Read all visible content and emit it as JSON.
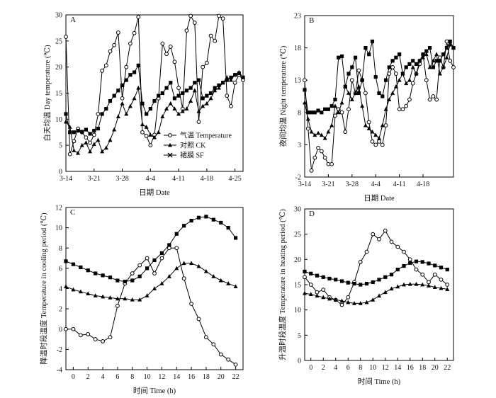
{
  "chart_data": [
    {
      "panel_label": "A",
      "type": "line",
      "x_is_date": true,
      "xlabel": "日期 Date",
      "ylabel": "白天均温 Day temperature (℃)",
      "ylim": [
        0,
        30
      ],
      "yticks": [
        0,
        5,
        10,
        15,
        20,
        25,
        30
      ],
      "xlim": [
        0,
        44
      ],
      "xticks": [
        0,
        7,
        14,
        21,
        28,
        35,
        42
      ],
      "xtick_labels": [
        "3-14",
        "3-21",
        "3-28",
        "4-4",
        "4-11",
        "4-18",
        "4-25"
      ],
      "legend_position": "right-middle",
      "series": [
        {
          "name": "气温 Temperature",
          "marker": "circle-open",
          "x": [
            0,
            1,
            2,
            3,
            4,
            5,
            6,
            7,
            8,
            9,
            10,
            11,
            12,
            13,
            14,
            15,
            16,
            17,
            18,
            19,
            20,
            21,
            22,
            23,
            24,
            25,
            26,
            27,
            28,
            29,
            30,
            31,
            32,
            33,
            34,
            35,
            36,
            37,
            38,
            39,
            40,
            41,
            42,
            43,
            44
          ],
          "y": [
            25.8,
            3.3,
            5.8,
            8.2,
            7.5,
            6.5,
            5.5,
            7,
            11,
            19.3,
            20.3,
            23,
            24.2,
            26.6,
            14,
            20,
            24.5,
            26.5,
            29.6,
            7.5,
            6.8,
            5,
            7,
            14,
            24.5,
            22.5,
            23.9,
            21,
            16,
            12,
            27,
            29.8,
            28.5,
            9.5,
            20,
            20.8,
            26,
            25,
            29.8,
            29.3,
            14.5,
            12.5,
            17,
            18.5,
            17.5
          ]
        },
        {
          "name": "对照 CK",
          "marker": "triangle",
          "x": [
            0,
            1,
            2,
            3,
            4,
            5,
            6,
            7,
            8,
            9,
            10,
            11,
            12,
            13,
            14,
            15,
            16,
            17,
            18,
            19,
            20,
            21,
            22,
            23,
            24,
            25,
            26,
            27,
            28,
            29,
            30,
            31,
            32,
            33,
            34,
            35,
            36,
            37,
            38,
            39,
            40,
            41,
            42,
            43,
            44
          ],
          "y": [
            9.5,
            8.5,
            4,
            3.5,
            5,
            5.5,
            3.8,
            5.2,
            6,
            3.8,
            4.5,
            6,
            8,
            10.5,
            13,
            11,
            12.5,
            14,
            16,
            9,
            8.5,
            7,
            6.5,
            7.5,
            10.5,
            12,
            13,
            12,
            11,
            11.5,
            12,
            13.5,
            15.5,
            11.5,
            12.5,
            13,
            14,
            15.5,
            16,
            17,
            18,
            17.5,
            18.5,
            19,
            18
          ]
        },
        {
          "name": "裙膜 SF",
          "marker": "square",
          "x": [
            0,
            1,
            2,
            3,
            4,
            5,
            6,
            7,
            8,
            9,
            10,
            11,
            12,
            13,
            14,
            15,
            16,
            17,
            18,
            19,
            20,
            21,
            22,
            23,
            24,
            25,
            26,
            27,
            28,
            29,
            30,
            31,
            32,
            33,
            34,
            35,
            36,
            37,
            38,
            39,
            40,
            41,
            42,
            43,
            44
          ],
          "y": [
            11,
            7.5,
            7.5,
            7.8,
            7.6,
            8,
            7.2,
            7.8,
            8.2,
            11,
            12,
            13.5,
            14.5,
            15.5,
            16.5,
            17.5,
            18.5,
            19,
            20.3,
            13,
            11,
            12,
            13.5,
            14.5,
            15,
            16,
            17,
            14,
            14.5,
            15,
            15.5,
            16,
            17,
            17.5,
            14,
            14.5,
            15,
            16,
            16.5,
            17,
            17.5,
            18,
            18.5,
            18.8,
            18
          ]
        }
      ]
    },
    {
      "panel_label": "B",
      "type": "line",
      "x_is_date": true,
      "xlabel": "日期 Date",
      "ylabel": "夜间均温 Night temperature (℃)",
      "ylim": [
        -2,
        23
      ],
      "yticks": [
        -2,
        3,
        8,
        13,
        18,
        23
      ],
      "xlim": [
        0,
        44
      ],
      "xticks": [
        0,
        7,
        14,
        21,
        28,
        35
      ],
      "xtick_labels": [
        "3-14",
        "3-21",
        "3-28",
        "4-4",
        "4-11",
        "4-18"
      ],
      "series": [
        {
          "name": "气温 Temperature",
          "marker": "circle-open",
          "x": [
            0,
            1,
            2,
            3,
            4,
            5,
            6,
            7,
            8,
            9,
            10,
            11,
            12,
            13,
            14,
            15,
            16,
            17,
            18,
            19,
            20,
            21,
            22,
            23,
            24,
            25,
            26,
            27,
            28,
            29,
            30,
            31,
            32,
            33,
            34,
            35,
            36,
            37,
            38,
            39,
            40,
            41,
            42,
            43,
            44
          ],
          "y": [
            13,
            5.5,
            -1,
            1,
            2.5,
            2,
            1,
            0,
            0,
            7.5,
            8.5,
            8,
            5,
            8.5,
            13,
            11,
            14.5,
            13,
            11,
            6.5,
            3.5,
            3,
            3.5,
            3,
            6,
            14,
            15,
            14,
            8.5,
            8.5,
            9,
            10,
            12.5,
            14,
            15.5,
            17,
            13,
            10,
            10.5,
            10,
            16.5,
            15,
            19,
            16,
            15
          ]
        },
        {
          "name": "对照 CK",
          "marker": "triangle",
          "x": [
            0,
            1,
            2,
            3,
            4,
            5,
            6,
            7,
            8,
            9,
            10,
            11,
            12,
            13,
            14,
            15,
            16,
            17,
            18,
            19,
            20,
            21,
            22,
            23,
            24,
            25,
            26,
            27,
            28,
            29,
            30,
            31,
            32,
            33,
            34,
            35,
            36,
            37,
            38,
            39,
            40,
            41,
            42,
            43,
            44
          ],
          "y": [
            9.5,
            7,
            5,
            4.5,
            4.8,
            4.5,
            4,
            5,
            6,
            9,
            8,
            9.5,
            12,
            11,
            10,
            11,
            12,
            9,
            6,
            5.5,
            5,
            4.5,
            4,
            6,
            8.5,
            10,
            11,
            12,
            13,
            14,
            12.5,
            13,
            15,
            14,
            16,
            16.5,
            17,
            15,
            16,
            17,
            14,
            15,
            16.5,
            18.5,
            18
          ]
        },
        {
          "name": "裙膜 SF",
          "marker": "square",
          "x": [
            0,
            1,
            2,
            3,
            4,
            5,
            6,
            7,
            8,
            9,
            10,
            11,
            12,
            13,
            14,
            15,
            16,
            17,
            18,
            19,
            20,
            21,
            22,
            23,
            24,
            25,
            26,
            27,
            28,
            29,
            30,
            31,
            32,
            33,
            34,
            35,
            36,
            37,
            38,
            39,
            40,
            41,
            42,
            43,
            44
          ],
          "y": [
            11.5,
            8,
            8,
            8,
            8.3,
            8,
            8.5,
            8.5,
            9,
            10,
            16.5,
            16.7,
            12,
            14,
            15,
            16.5,
            11,
            13,
            18,
            17,
            19,
            13.5,
            11,
            10.5,
            13,
            15,
            16,
            16.5,
            17,
            14,
            15,
            15.5,
            16,
            15.5,
            16,
            17,
            17.5,
            18,
            15,
            16,
            16,
            17,
            18,
            19,
            18
          ]
        }
      ]
    },
    {
      "panel_label": "C",
      "type": "line",
      "xlabel": "时间 Time (h)",
      "ylabel": "降温时段温度 Temperature in cooling period (℃)",
      "ylim": [
        -4,
        12
      ],
      "yticks": [
        -4,
        -2,
        0,
        2,
        4,
        6,
        8,
        10,
        12
      ],
      "xlim": [
        -1,
        23
      ],
      "xticks": [
        0,
        2,
        4,
        6,
        8,
        10,
        12,
        14,
        16,
        18,
        20,
        22
      ],
      "series": [
        {
          "name": "气温 Temperature",
          "marker": "circle-open",
          "x": [
            -1,
            0,
            1,
            2,
            3,
            4,
            5,
            6,
            7,
            8,
            9,
            10,
            11,
            12,
            13,
            14,
            15,
            16,
            17,
            18,
            19,
            20,
            21,
            22
          ],
          "y": [
            0,
            0,
            -0.6,
            -0.5,
            -1,
            -1.2,
            -0.8,
            2.3,
            4.5,
            5.5,
            6.3,
            7,
            5.5,
            7,
            8,
            8,
            5,
            2.5,
            1,
            -0.8,
            -1.5,
            -2.5,
            -3,
            -3.5
          ]
        },
        {
          "name": "对照 CK",
          "marker": "triangle",
          "x": [
            -1,
            0,
            1,
            2,
            3,
            4,
            5,
            6,
            7,
            8,
            9,
            10,
            11,
            12,
            13,
            14,
            15,
            16,
            17,
            18,
            19,
            20,
            21,
            22
          ],
          "y": [
            4.2,
            3.9,
            3.7,
            3.5,
            3.3,
            3.2,
            3.1,
            3,
            3,
            2.9,
            2.9,
            3.3,
            4,
            4.5,
            5.2,
            6,
            6.5,
            6.5,
            6.2,
            5.7,
            5.2,
            4.8,
            4.5,
            4.2
          ]
        },
        {
          "name": "裙膜 SF",
          "marker": "square",
          "x": [
            -1,
            0,
            1,
            2,
            3,
            4,
            5,
            6,
            7,
            8,
            9,
            10,
            11,
            12,
            13,
            14,
            15,
            16,
            17,
            18,
            19,
            20,
            21,
            22
          ],
          "y": [
            6.7,
            6.4,
            6.1,
            5.8,
            5.5,
            5.3,
            5.1,
            4.8,
            4.7,
            4.8,
            5.2,
            6,
            6.8,
            7.5,
            8.3,
            9.4,
            10.2,
            10.7,
            11,
            11.1,
            10.8,
            10.5,
            10,
            9
          ]
        }
      ]
    },
    {
      "panel_label": "D",
      "type": "line",
      "xlabel": "时间 Time (h)",
      "ylabel": "升温时段温度 Temperature in heating period (℃)",
      "ylim": [
        0,
        30
      ],
      "yticks": [
        0,
        5,
        10,
        15,
        20,
        25,
        30
      ],
      "xlim": [
        -1,
        23
      ],
      "xticks": [
        0,
        2,
        4,
        6,
        8,
        10,
        12,
        14,
        16,
        18,
        20,
        22
      ],
      "series": [
        {
          "name": "气温 Temperature",
          "marker": "circle-open",
          "x": [
            -1,
            0,
            1,
            2,
            3,
            4,
            5,
            6,
            7,
            8,
            9,
            10,
            11,
            12,
            13,
            14,
            15,
            16,
            17,
            18,
            19,
            20,
            21,
            22
          ],
          "y": [
            16.5,
            15,
            13.5,
            14,
            12.5,
            12,
            11,
            12.5,
            15.5,
            19.5,
            21.5,
            25,
            24,
            25.7,
            23.5,
            22.5,
            21.5,
            20,
            18,
            17,
            15.5,
            17,
            16,
            15
          ]
        },
        {
          "name": "对照 CK",
          "marker": "triangle",
          "x": [
            -1,
            0,
            1,
            2,
            3,
            4,
            5,
            6,
            7,
            8,
            9,
            10,
            11,
            12,
            13,
            14,
            15,
            16,
            17,
            18,
            19,
            20,
            21,
            22
          ],
          "y": [
            13.3,
            13.1,
            12.8,
            12.5,
            12.2,
            12,
            11.8,
            11.5,
            11.3,
            11.3,
            11.5,
            12,
            12.8,
            13.5,
            14.2,
            14.6,
            15,
            15.1,
            15.1,
            15,
            14.8,
            14.5,
            14.3,
            14.1
          ]
        },
        {
          "name": "裙膜 SF",
          "marker": "square",
          "x": [
            -1,
            0,
            1,
            2,
            3,
            4,
            5,
            6,
            7,
            8,
            9,
            10,
            11,
            12,
            13,
            14,
            15,
            16,
            17,
            18,
            19,
            20,
            21,
            22
          ],
          "y": [
            17.6,
            17.2,
            16.8,
            16.5,
            16.2,
            16,
            15.7,
            15.4,
            15.2,
            15,
            15.2,
            15.5,
            16,
            16.5,
            17,
            18,
            18.7,
            19.3,
            19.6,
            19.5,
            19.2,
            18.8,
            18.4,
            18
          ]
        }
      ]
    }
  ]
}
